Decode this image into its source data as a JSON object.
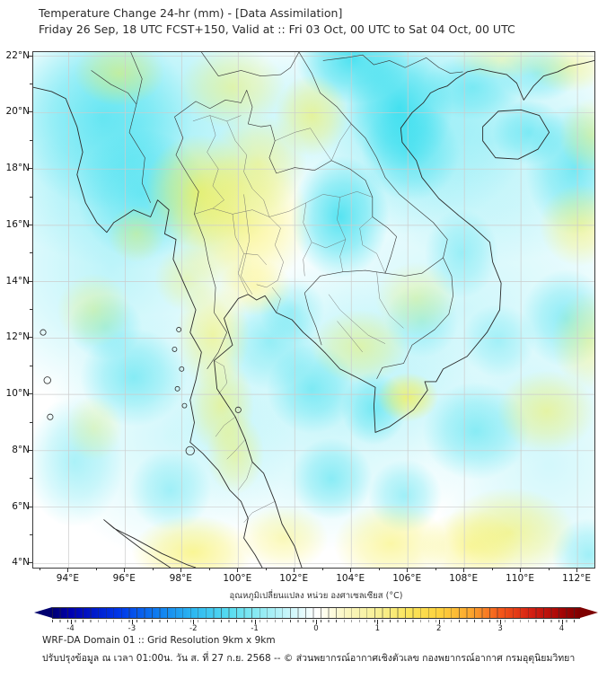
{
  "header": {
    "title_line1": "Temperature Change 24-hr (mm) - [Data Assimilation]",
    "title_line2": "Friday 26 Sep, 18 UTC FCST+150, Valid at :: Fri 03 Oct, 00 UTC to Sat 04 Oct, 00 UTC"
  },
  "footer": {
    "line1": "WRF-DA Domain 01 :: Grid Resolution 9km x 9km",
    "line2": "ปรับปรุงข้อมูล ณ เวลา 01:00น. วัน ส. ที่ 27 ก.ย. 2568 -- © ส่วนพยากรณ์อากาศเชิงตัวเลข กองพยากรณ์อากาศ กรมอุตุนิยมวิทยา"
  },
  "chart_data": {
    "type": "heatmap",
    "title": "Temperature Change 24-hr (mm) - [Data Assimilation]",
    "subtitle": "Friday 26 Sep, 18 UTC FCST+150, Valid at :: Fri 03 Oct, 00 UTC to Sat 04 Oct, 00 UTC",
    "projection": {
      "lon_min": 92.75,
      "lon_max": 112.6,
      "lat_min": 3.85,
      "lat_max": 22.15
    },
    "x_axis": {
      "tick_values": [
        94,
        96,
        98,
        100,
        102,
        104,
        106,
        108,
        110,
        112
      ],
      "tick_labels": [
        "94°E",
        "96°E",
        "98°E",
        "100°E",
        "102°E",
        "104°E",
        "106°E",
        "108°E",
        "110°E",
        "112°E"
      ]
    },
    "y_axis": {
      "tick_values": [
        22,
        20,
        18,
        16,
        14,
        12,
        10,
        8,
        6,
        4
      ],
      "tick_labels": [
        "22°N",
        "20°N",
        "18°N",
        "16°N",
        "14°N",
        "12°N",
        "10°N",
        "8°N",
        "6°N",
        "4°N"
      ]
    },
    "grid": {
      "step_deg": 2,
      "color": "#cccccc",
      "on": true
    },
    "colorbar": {
      "label": "อุณหภูมิเปลี่ยนแปลง หน่วย องศาเซลเซียส (°C)",
      "tick_values": [
        -4,
        -3,
        -2,
        -1,
        0,
        1,
        2,
        3,
        4
      ],
      "tick_labels": [
        "-4",
        "-3",
        "-2",
        "-1",
        "0",
        "1",
        "2",
        "3",
        "4"
      ],
      "range": [
        -4.3,
        4.3
      ],
      "extend": "both",
      "stops": [
        [
          -4.3,
          "#000070"
        ],
        [
          -4,
          "#0000B0"
        ],
        [
          -3.2,
          "#0038E8"
        ],
        [
          -2.6,
          "#0E7BF0"
        ],
        [
          -2,
          "#2DB8F0"
        ],
        [
          -1.4,
          "#58DCF0"
        ],
        [
          -1,
          "#85E9F2"
        ],
        [
          -0.5,
          "#C2F5FA"
        ],
        [
          -0.15,
          "#EDFDFE"
        ],
        [
          0,
          "#FFFFFF"
        ],
        [
          0.15,
          "#FEFDEC"
        ],
        [
          0.5,
          "#FAF6C0"
        ],
        [
          1,
          "#F7F095"
        ],
        [
          1.5,
          "#FAE55C"
        ],
        [
          2,
          "#FDD23E"
        ],
        [
          2.5,
          "#FCA82E"
        ],
        [
          3,
          "#F4581A"
        ],
        [
          3.5,
          "#D42012"
        ],
        [
          4,
          "#A50505"
        ],
        [
          4.3,
          "#7E0000"
        ]
      ]
    },
    "anomaly_colors": {
      "negative": "#18D9EC",
      "positive": "#F6EE45"
    },
    "anomalies_degC": [
      [
        96.5,
        19.5,
        4.5,
        3.5,
        -0.45
      ],
      [
        95.5,
        14.5,
        3.5,
        3.5,
        -0.3
      ],
      [
        105.5,
        20.0,
        3.5,
        3.0,
        -0.35
      ],
      [
        109.0,
        19.0,
        4.0,
        3.0,
        -0.3
      ],
      [
        108.0,
        13.0,
        5.0,
        4.0,
        -0.22
      ],
      [
        103.0,
        9.5,
        4.0,
        3.5,
        -0.25
      ],
      [
        97.5,
        8.5,
        3.0,
        3.0,
        -0.2
      ],
      [
        111.0,
        7.5,
        3.0,
        3.0,
        -0.2
      ],
      [
        95.2,
        19.8,
        2.2,
        2.2,
        -0.5
      ],
      [
        96.6,
        17.1,
        1.6,
        1.6,
        -0.45
      ],
      [
        104.05,
        21.9,
        1.4,
        1.1,
        -0.75
      ],
      [
        105.7,
        20.2,
        1.3,
        1.6,
        -0.7
      ],
      [
        106.1,
        18.6,
        1.2,
        1.2,
        -0.5
      ],
      [
        103.6,
        16.3,
        1.2,
        1.5,
        -0.75
      ],
      [
        110.3,
        19.3,
        0.9,
        0.8,
        -0.45
      ],
      [
        111.9,
        18.0,
        1.2,
        1.6,
        -0.55
      ],
      [
        108.3,
        20.9,
        1.2,
        0.8,
        -0.4
      ],
      [
        96.3,
        10.6,
        1.3,
        1.2,
        -0.45
      ],
      [
        94.2,
        7.6,
        1.2,
        1.6,
        -0.35
      ],
      [
        97.6,
        6.6,
        1.0,
        1.0,
        -0.35
      ],
      [
        95.3,
        12.4,
        0.9,
        0.8,
        -0.35
      ],
      [
        101.1,
        11.9,
        1.2,
        1.2,
        -0.4
      ],
      [
        102.6,
        10.2,
        1.1,
        1.1,
        -0.45
      ],
      [
        104.8,
        9.5,
        0.8,
        0.9,
        -0.5
      ],
      [
        103.3,
        7.0,
        1.0,
        1.0,
        -0.45
      ],
      [
        105.9,
        6.4,
        0.9,
        0.9,
        -0.4
      ],
      [
        108.4,
        8.7,
        1.3,
        1.2,
        -0.45
      ],
      [
        111.6,
        12.7,
        1.1,
        1.2,
        -0.45
      ],
      [
        106.5,
        12.6,
        0.9,
        0.9,
        -0.3
      ],
      [
        109.2,
        11.9,
        0.9,
        0.9,
        -0.3
      ],
      [
        112.4,
        4.3,
        0.9,
        0.9,
        -0.4
      ],
      [
        101.9,
        13.0,
        0.8,
        0.8,
        -0.3
      ],
      [
        107.9,
        15.0,
        0.9,
        1.1,
        -0.35
      ],
      [
        110.6,
        21.4,
        1.0,
        0.7,
        -0.4
      ],
      [
        95.8,
        21.4,
        1.1,
        0.8,
        0.5
      ],
      [
        99.8,
        20.9,
        1.3,
        1.0,
        0.45
      ],
      [
        102.6,
        19.9,
        0.9,
        1.0,
        0.55
      ],
      [
        98.6,
        17.2,
        1.3,
        1.4,
        0.7
      ],
      [
        100.1,
        16.1,
        1.7,
        1.7,
        0.6
      ],
      [
        100.7,
        18.2,
        1.2,
        1.2,
        0.45
      ],
      [
        96.4,
        15.7,
        0.7,
        0.7,
        0.4
      ],
      [
        94.9,
        13.0,
        0.9,
        0.9,
        0.35
      ],
      [
        99.1,
        12.1,
        0.9,
        1.3,
        0.5
      ],
      [
        99.4,
        9.6,
        0.8,
        1.2,
        0.5
      ],
      [
        99.9,
        7.9,
        0.7,
        1.0,
        0.45
      ],
      [
        94.9,
        8.8,
        0.7,
        0.8,
        0.3
      ],
      [
        98.4,
        4.4,
        1.5,
        0.9,
        0.6
      ],
      [
        101.6,
        4.9,
        1.1,
        0.8,
        0.4
      ],
      [
        105.4,
        4.7,
        1.4,
        1.0,
        0.5
      ],
      [
        109.6,
        5.1,
        1.6,
        1.1,
        0.55
      ],
      [
        108.2,
        4.6,
        1.2,
        0.9,
        0.45
      ],
      [
        110.9,
        9.4,
        1.2,
        1.0,
        0.5
      ],
      [
        112.4,
        11.9,
        0.9,
        1.2,
        0.4
      ],
      [
        112.1,
        16.0,
        1.0,
        1.0,
        0.5
      ],
      [
        104.3,
        11.7,
        1.2,
        0.9,
        0.45
      ],
      [
        106.0,
        9.9,
        0.75,
        0.6,
        0.75
      ],
      [
        106.3,
        13.4,
        1.0,
        0.9,
        0.35
      ],
      [
        111.7,
        21.6,
        1.0,
        0.6,
        0.4
      ],
      [
        112.5,
        19.2,
        0.8,
        0.9,
        0.4
      ],
      [
        100.6,
        13.8,
        0.9,
        0.7,
        0.4
      ],
      [
        98.2,
        14.1,
        0.8,
        0.8,
        0.35
      ],
      [
        109.3,
        21.9,
        1.2,
        0.5,
        0.3
      ]
    ]
  }
}
